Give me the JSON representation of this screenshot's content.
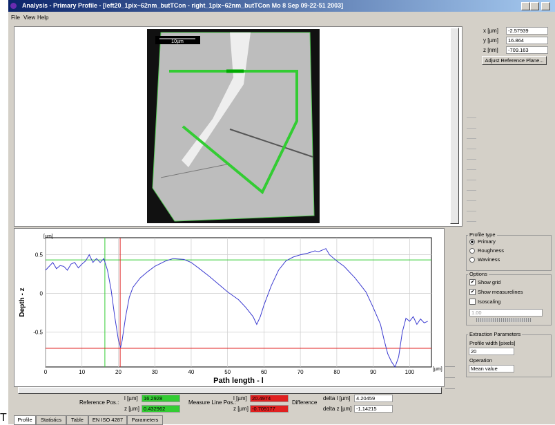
{
  "window": {
    "title": "Analysis - Primary Profile - [left20_1pix~62nm_butTCon - right_1pix~62nm_butTCon Mo 8 Sep 09-22-51 2003]",
    "menu": [
      "File",
      "View",
      "Help"
    ]
  },
  "image_panel": {
    "scale_label": "10µm",
    "coords": [
      {
        "label": "x [µm]",
        "value": "-2.57939"
      },
      {
        "label": "y [µm]",
        "value": "16.864"
      },
      {
        "label": "z [nm]",
        "value": "-709.163"
      }
    ],
    "button": "Adjust Reference Plane..."
  },
  "chart_data": {
    "type": "line",
    "y_label": "Depth - z",
    "x_label": "Path length - l",
    "y_unit": "[µm]",
    "x_unit": "[µm]",
    "color": "#3a3ad0",
    "grid": true,
    "xlim": [
      0,
      106
    ],
    "ylim": [
      -0.95,
      0.72
    ],
    "xticks": [
      0,
      10,
      20,
      30,
      40,
      50,
      60,
      70,
      80,
      90,
      100
    ],
    "yticks": [
      0.5,
      0,
      -0.5
    ],
    "x": [
      0,
      1,
      2,
      3,
      4,
      5,
      6,
      7,
      8,
      9,
      10,
      11,
      12,
      13,
      14,
      15,
      16,
      17,
      18,
      19,
      20,
      20.6,
      21,
      22,
      23,
      24,
      26,
      28,
      30,
      33,
      35,
      38,
      40,
      42,
      45,
      48,
      50,
      53,
      55,
      57,
      58,
      59,
      60,
      62,
      64,
      66,
      68,
      70,
      72,
      74,
      75,
      77,
      78,
      79,
      80,
      82,
      85,
      88,
      90,
      92,
      93,
      94,
      95,
      96,
      97,
      98,
      99,
      100,
      101,
      102,
      103,
      104,
      105
    ],
    "values": [
      0.3,
      0.35,
      0.4,
      0.32,
      0.36,
      0.35,
      0.3,
      0.38,
      0.4,
      0.33,
      0.38,
      0.42,
      0.5,
      0.4,
      0.45,
      0.4,
      0.45,
      0.3,
      0.05,
      -0.3,
      -0.6,
      -0.7,
      -0.62,
      -0.3,
      -0.05,
      0.08,
      0.2,
      0.28,
      0.35,
      0.42,
      0.45,
      0.44,
      0.4,
      0.33,
      0.22,
      0.1,
      0.02,
      -0.08,
      -0.18,
      -0.3,
      -0.4,
      -0.3,
      -0.15,
      0.1,
      0.3,
      0.42,
      0.47,
      0.5,
      0.52,
      0.55,
      0.54,
      0.58,
      0.5,
      0.46,
      0.42,
      0.35,
      0.2,
      0.02,
      -0.18,
      -0.4,
      -0.6,
      -0.78,
      -0.88,
      -0.95,
      -0.82,
      -0.5,
      -0.32,
      -0.36,
      -0.3,
      -0.4,
      -0.33,
      -0.38,
      -0.36
    ],
    "reference_line": {
      "l": 16.2928,
      "z": 0.432962,
      "color": "#33cc33"
    },
    "measure_line": {
      "l": 20.4974,
      "z": -0.709177,
      "color": "#e02020"
    }
  },
  "side_panel": {
    "profile_type": {
      "title": "Profile type",
      "options": [
        "Primary",
        "Roughness",
        "Waviness"
      ],
      "selected": 0
    },
    "options": {
      "title": "Options",
      "checks": [
        {
          "label": "Show grid",
          "checked": true
        },
        {
          "label": "Show measurelines",
          "checked": true
        },
        {
          "label": "Isoscaling",
          "checked": false
        }
      ],
      "iso_value": "1.00"
    },
    "extraction": {
      "title": "Extraction Parameters",
      "width_label": "Profile width [pixels]",
      "width": "20",
      "operation_label": "Operation",
      "operation": "Mean value"
    }
  },
  "readouts": {
    "reference": {
      "label": "Reference Pos.:",
      "l_label": "l [µm]",
      "z_label": "z [µm]"
    },
    "measure": {
      "label": "Measure Line Pos.:",
      "l_label": "l [µm]",
      "z_label": "z [µm]"
    },
    "difference": {
      "label": "Difference",
      "dl_label": "delta l [µm]",
      "dz_label": "delta z [µm]",
      "dl": "4.20459",
      "dz": "-1.14215"
    }
  },
  "tabs": [
    "Profile",
    "Statistics",
    "Table",
    "EN ISO 4287",
    "Parameters"
  ],
  "footer_mark": "T"
}
